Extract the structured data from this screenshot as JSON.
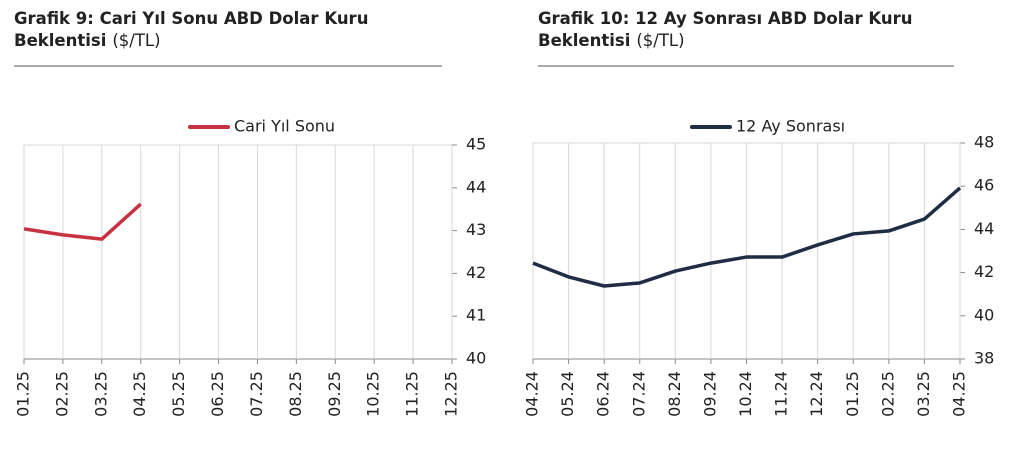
{
  "chart_data": [
    {
      "type": "line",
      "title": "Grafik 9: Cari Yıl Sonu ABD Dolar Kuru Beklentisi",
      "unit": "($/TL)",
      "categories": [
        "01.25",
        "02.25",
        "03.25",
        "04.25",
        "05.25",
        "06.25",
        "07.25",
        "08.25",
        "09.25",
        "10.25",
        "11.25",
        "12.25"
      ],
      "series": [
        {
          "name": "Cari Yıl Sonu",
          "color": "#c8313f",
          "values": [
            43.04,
            42.9,
            42.8,
            43.62,
            null,
            null,
            null,
            null,
            null,
            null,
            null,
            null
          ]
        }
      ],
      "ylim": [
        40,
        45
      ],
      "yticks": [
        40,
        41,
        42,
        43,
        44,
        45
      ],
      "y_axis_side": "right",
      "grid": "x",
      "legend": "top"
    },
    {
      "type": "line",
      "title": "Grafik 10: 12 Ay Sonrası ABD Dolar Kuru Beklentisi",
      "unit": "($/TL)",
      "categories": [
        "04.24",
        "05.24",
        "06.24",
        "07.24",
        "08.24",
        "09.24",
        "10.24",
        "11.24",
        "12.24",
        "01.25",
        "02.25",
        "03.25",
        "04.25"
      ],
      "series": [
        {
          "name": "12 Ay Sonrası",
          "color": "#1f2d44",
          "values": [
            42.44,
            41.8,
            41.38,
            41.52,
            42.07,
            42.44,
            42.72,
            42.72,
            43.28,
            43.79,
            43.93,
            44.48,
            45.92
          ]
        }
      ],
      "ylim": [
        38,
        48
      ],
      "yticks": [
        38,
        40,
        42,
        44,
        46,
        48
      ],
      "y_axis_side": "right",
      "grid": "x",
      "legend": "top"
    }
  ]
}
